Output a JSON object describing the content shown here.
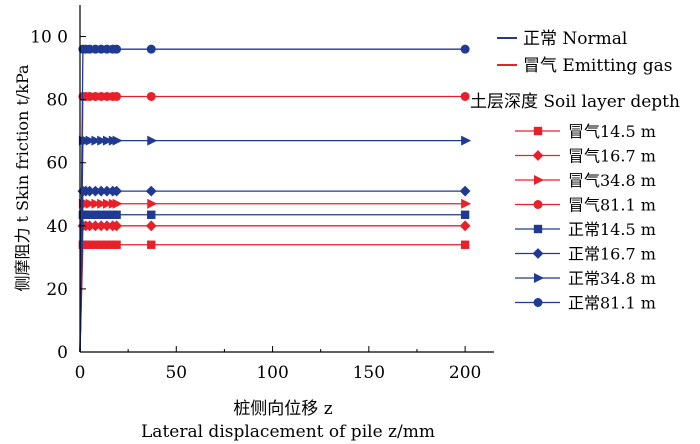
{
  "chart_data": {
    "type": "line",
    "title": "",
    "ylabel": "侧摩阻力 t Skin friction t/kPa",
    "xlabel_cn": "桩侧向位移 z",
    "xlabel_en": "Lateral displacement of pile z/mm",
    "xlim": [
      0,
      215
    ],
    "ylim": [
      0,
      110
    ],
    "x_ticks": [
      0,
      50,
      100,
      150,
      200
    ],
    "y_ticks": [
      0,
      20,
      40,
      60,
      80,
      100
    ],
    "y_tick_labels": [
      "0",
      "20",
      "40",
      "60",
      "80",
      "10 0"
    ],
    "grid": false,
    "legend_groups": [
      {
        "label": "正常 Normal",
        "color": "#1f3a93"
      },
      {
        "label": "冒气 Emitting gas",
        "color": "#e8202a"
      }
    ],
    "legend_subtitle": "土层深度 Soil layer depth",
    "x": [
      0,
      1.5,
      3,
      5,
      8,
      11,
      14,
      17,
      19,
      37,
      200
    ],
    "series": [
      {
        "name": "冒气14.5 m",
        "color": "#e8202a",
        "marker": "square",
        "values": [
          0,
          34,
          34,
          34,
          34,
          34,
          34,
          34,
          34,
          34,
          34
        ]
      },
      {
        "name": "冒气16.7 m",
        "color": "#e8202a",
        "marker": "diamond",
        "values": [
          0,
          40,
          40,
          40,
          40,
          40,
          40,
          40,
          40,
          40,
          40
        ]
      },
      {
        "name": "冒气34.8 m",
        "color": "#e8202a",
        "marker": "triangle",
        "values": [
          0,
          47,
          47,
          47,
          47,
          47,
          47,
          47,
          47,
          47,
          47
        ]
      },
      {
        "name": "冒气81.1 m",
        "color": "#e8202a",
        "marker": "circle",
        "values": [
          0,
          81,
          81,
          81,
          81,
          81,
          81,
          81,
          81,
          81,
          81
        ]
      },
      {
        "name": "正常14.5 m",
        "color": "#1f3a93",
        "marker": "square",
        "values": [
          0,
          43.5,
          43.5,
          43.5,
          43.5,
          43.5,
          43.5,
          43.5,
          43.5,
          43.5,
          43.5
        ]
      },
      {
        "name": "正常16.7 m",
        "color": "#1f3a93",
        "marker": "diamond",
        "values": [
          0,
          51,
          51,
          51,
          51,
          51,
          51,
          51,
          51,
          51,
          51
        ]
      },
      {
        "name": "正常34.8 m",
        "color": "#1f3a93",
        "marker": "triangle",
        "values": [
          0,
          67,
          67,
          67,
          67,
          67,
          67,
          67,
          67,
          67,
          67
        ]
      },
      {
        "name": "正常81.1 m",
        "color": "#1f3a93",
        "marker": "circle",
        "values": [
          0,
          96,
          96,
          96,
          96,
          96,
          96,
          96,
          96,
          96,
          96
        ]
      }
    ]
  }
}
